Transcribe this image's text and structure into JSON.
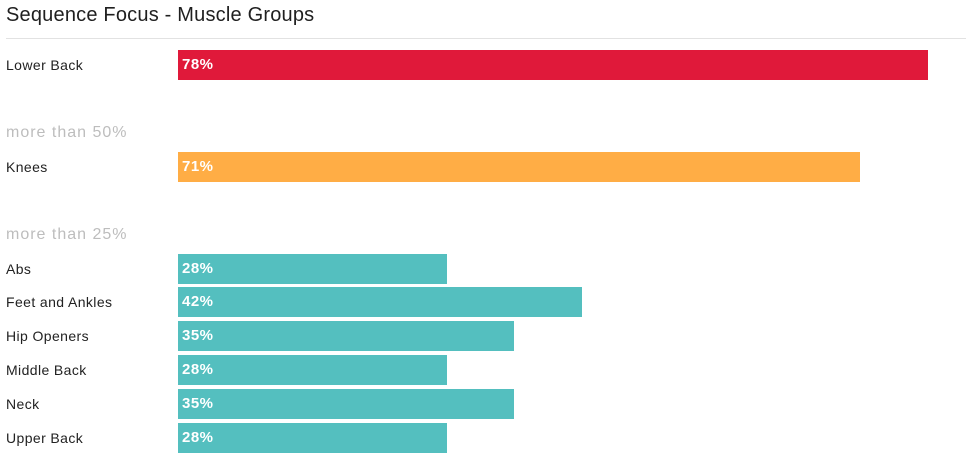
{
  "title": "Sequence Focus - Muscle Groups",
  "colors": {
    "high": "#e0193a",
    "medium": "#ffad45",
    "low": "#54bfbf"
  },
  "chart_data": {
    "type": "bar",
    "orientation": "horizontal",
    "title": "Sequence Focus - Muscle Groups",
    "xlim": [
      0,
      100
    ],
    "groups": [
      {
        "heading": "",
        "color_key": "high",
        "items": [
          {
            "label": "Lower Back",
            "value": 78,
            "display": "78%"
          }
        ]
      },
      {
        "heading": "more than 50%",
        "color_key": "medium",
        "items": [
          {
            "label": "Knees",
            "value": 71,
            "display": "71%"
          }
        ]
      },
      {
        "heading": "more than 25%",
        "color_key": "low",
        "items": [
          {
            "label": "Abs",
            "value": 28,
            "display": "28%"
          },
          {
            "label": "Feet and Ankles",
            "value": 42,
            "display": "42%"
          },
          {
            "label": "Hip Openers",
            "value": 35,
            "display": "35%"
          },
          {
            "label": "Middle Back",
            "value": 28,
            "display": "28%"
          },
          {
            "label": "Neck",
            "value": 35,
            "display": "35%"
          },
          {
            "label": "Upper Back",
            "value": 28,
            "display": "28%"
          }
        ]
      }
    ]
  }
}
